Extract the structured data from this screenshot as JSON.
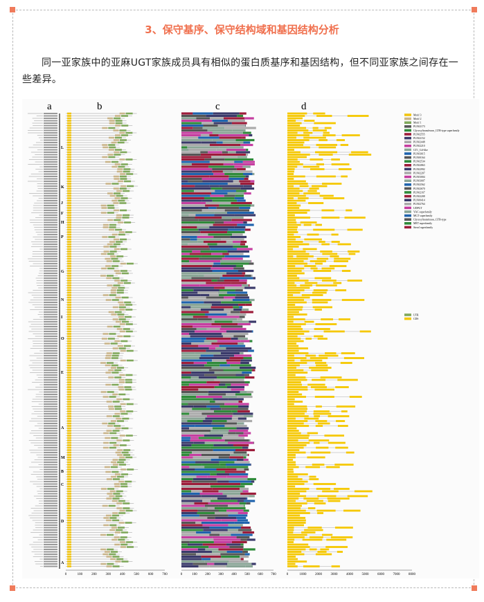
{
  "header": {
    "title": "3、保守基序、保守结构域和基因结构分析"
  },
  "paragraph": "同一亚家族中的亚麻UGT家族成员具有相似的蛋白质基序和基因结构，但不同亚家族之间存在一些差异。",
  "figure": {
    "panel_labels": [
      "a",
      "b",
      "c",
      "d"
    ],
    "subfamilies": [
      "L",
      "K",
      "J",
      "F",
      "H",
      "P",
      "G",
      "N",
      "I",
      "O",
      "E",
      "A",
      "M",
      "B",
      "C",
      "D",
      "A"
    ],
    "panel_b_ticks": [
      0,
      100,
      200,
      300,
      400,
      500,
      600,
      700
    ],
    "panel_c_ticks": [
      0,
      100,
      200,
      300,
      400,
      500,
      600,
      700
    ],
    "panel_d_ticks": [
      0,
      1000,
      2000,
      3000,
      4000,
      5000,
      6000,
      7000,
      8000
    ],
    "legend": [
      "Motif 3",
      "Motif 2",
      "Motif 1",
      "PLN02173",
      "Glycosyltransferase_GTB-type superfamily",
      "PLN02555",
      "PLN02152",
      "PLN02448",
      "PLN02210",
      "GT1_Gtf-like",
      "PLN03015",
      "PLN00164",
      "PLN02534",
      "PLN02863",
      "PLN02992",
      "PLN02207",
      "PLN03004",
      "PLN03007",
      "PLN02562",
      "PLN02670",
      "PLN02167",
      "PLN02208",
      "PLN00414",
      "PLN02764",
      "UDPGT",
      "YAC superfamily",
      "MGT superfamily",
      "Glycosyltransferase_GTB-type",
      "MET superfamily",
      "Sterol superfamily",
      "UTR",
      "CDS"
    ]
  }
}
